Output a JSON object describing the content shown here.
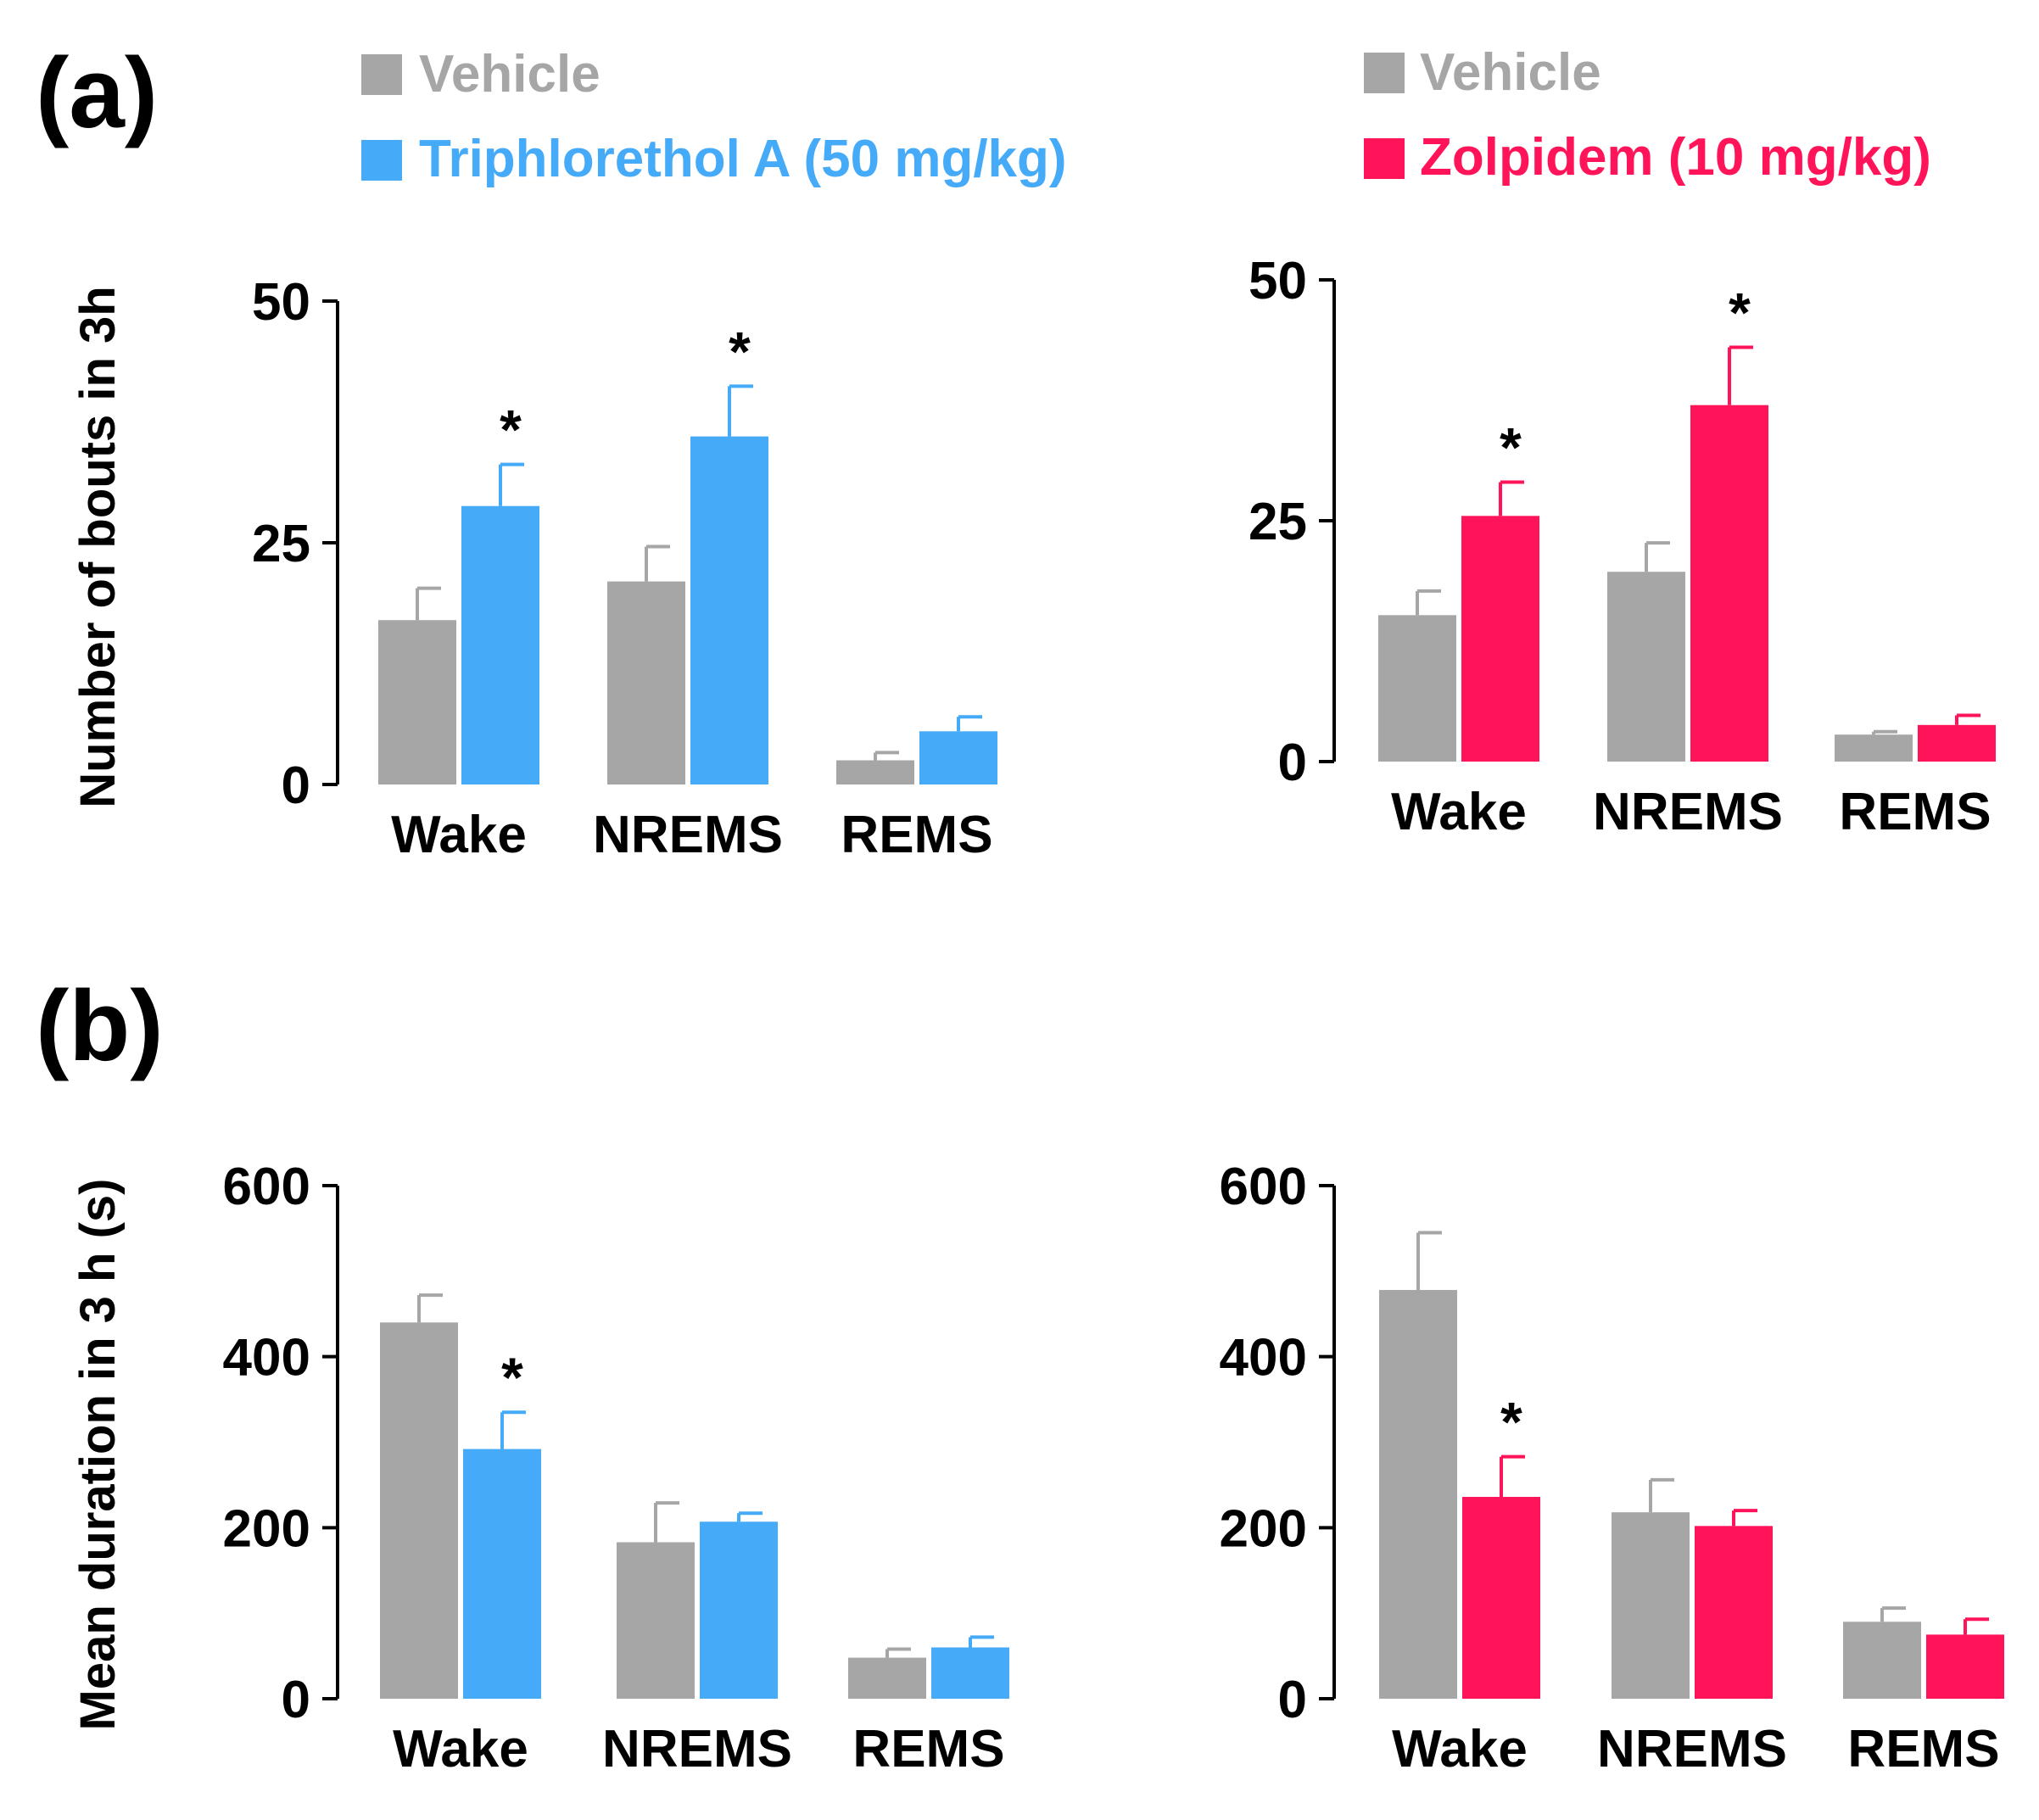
{
  "panel_labels": {
    "a": "(a)",
    "b": "(b)"
  },
  "legends": {
    "left": [
      {
        "label": "Vehicle",
        "color": "#a6a6a6"
      },
      {
        "label": "Triphlorethol A (50 mg/kg)",
        "color": "#45aaf7"
      }
    ],
    "right": [
      {
        "label": "Vehicle",
        "color": "#a6a6a6"
      },
      {
        "label": "Zolpidem (10 mg/kg)",
        "color": "#ff1459"
      }
    ]
  },
  "chart_data": [
    {
      "id": "a-left",
      "type": "bar",
      "categories": [
        "Wake",
        "NREMS",
        "REMS"
      ],
      "ylabel": "Number of bouts in 3h",
      "ylim": [
        0,
        50
      ],
      "yticks": [
        0,
        25,
        50
      ],
      "series": [
        {
          "name": "Vehicle",
          "color": "#a6a6a6",
          "values": [
            17,
            21,
            2.5
          ],
          "errors": [
            3.3,
            3.6,
            0.8
          ]
        },
        {
          "name": "Triphlorethol A (50 mg/kg)",
          "color": "#45aaf7",
          "values": [
            28.8,
            36,
            5.5
          ],
          "errors": [
            4.3,
            5.2,
            1.5
          ]
        }
      ],
      "significance": [
        {
          "category": 0,
          "series": 1,
          "label": "*"
        },
        {
          "category": 1,
          "series": 1,
          "label": "*"
        }
      ]
    },
    {
      "id": "a-right",
      "type": "bar",
      "categories": [
        "Wake",
        "NREMS",
        "REMS"
      ],
      "ylabel": "",
      "ylim": [
        0,
        50
      ],
      "yticks": [
        0,
        25,
        50
      ],
      "series": [
        {
          "name": "Vehicle",
          "color": "#a6a6a6",
          "values": [
            15.2,
            19.7,
            2.8
          ],
          "errors": [
            2.5,
            3,
            0.3
          ]
        },
        {
          "name": "Zolpidem (10 mg/kg)",
          "color": "#ff1459",
          "values": [
            25.5,
            37,
            3.8
          ],
          "errors": [
            3.5,
            6,
            1
          ]
        }
      ],
      "significance": [
        {
          "category": 0,
          "series": 1,
          "label": "*"
        },
        {
          "category": 1,
          "series": 1,
          "label": "*"
        }
      ]
    },
    {
      "id": "b-left",
      "type": "bar",
      "categories": [
        "Wake",
        "NREMS",
        "REMS"
      ],
      "ylabel": "Mean duration in 3 h (s)",
      "ylim": [
        0,
        600
      ],
      "yticks": [
        0,
        200,
        400,
        600
      ],
      "series": [
        {
          "name": "Vehicle",
          "color": "#a6a6a6",
          "values": [
            440,
            183,
            48
          ],
          "errors": [
            32,
            46,
            10
          ]
        },
        {
          "name": "Triphlorethol A (50 mg/kg)",
          "color": "#45aaf7",
          "values": [
            292,
            207,
            60
          ],
          "errors": [
            43,
            10,
            12
          ]
        }
      ],
      "significance": [
        {
          "category": 0,
          "series": 1,
          "label": "*"
        }
      ]
    },
    {
      "id": "b-right",
      "type": "bar",
      "categories": [
        "Wake",
        "NREMS",
        "REMS"
      ],
      "ylabel": "",
      "ylim": [
        0,
        600
      ],
      "yticks": [
        0,
        200,
        400,
        600
      ],
      "series": [
        {
          "name": "Vehicle",
          "color": "#a6a6a6",
          "values": [
            478,
            218,
            90
          ],
          "errors": [
            67,
            38,
            16
          ]
        },
        {
          "name": "Zolpidem (10 mg/kg)",
          "color": "#ff1459",
          "values": [
            236,
            202,
            75
          ],
          "errors": [
            47,
            18,
            18
          ]
        }
      ],
      "significance": [
        {
          "category": 0,
          "series": 1,
          "label": "*"
        }
      ]
    }
  ]
}
